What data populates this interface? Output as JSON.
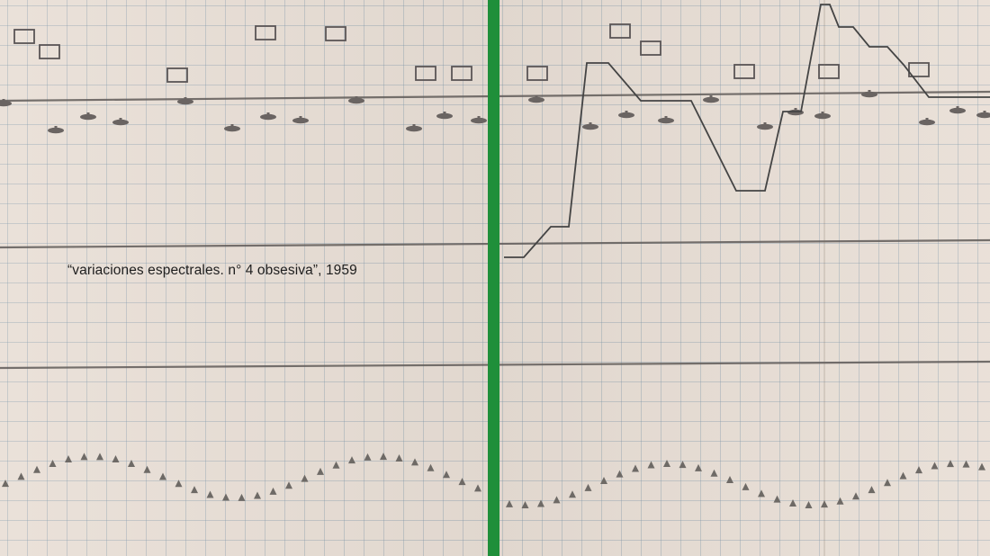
{
  "caption": "“variaciones espectrales. n° 4 obsesiva”, 1959",
  "colors": {
    "paper": "#e8ded5",
    "grid": "#7891a5",
    "ink": "#4a4a4a",
    "playhead": "#1f8f3a"
  }
}
